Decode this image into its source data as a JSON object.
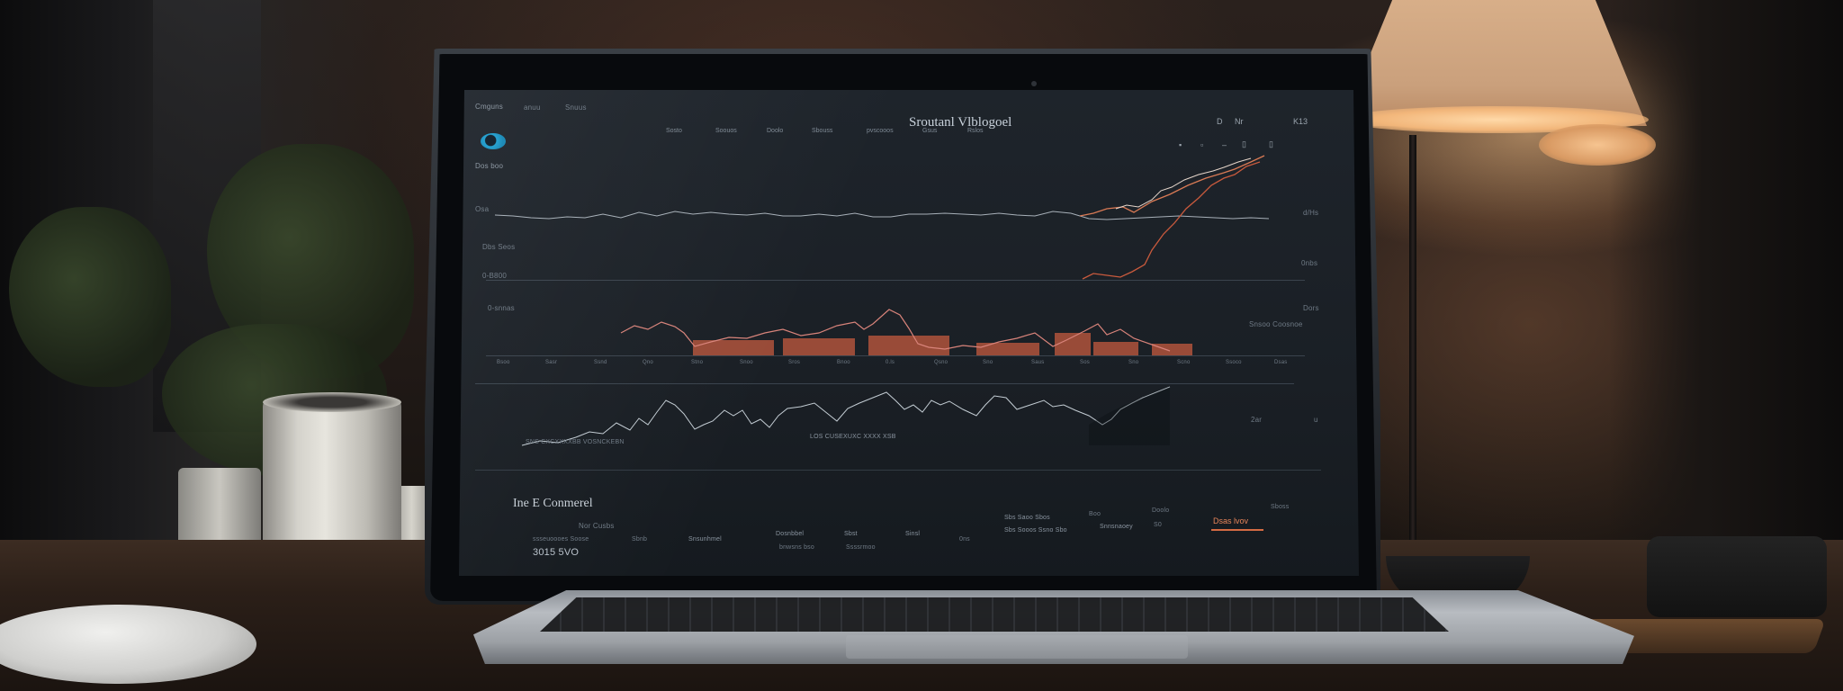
{
  "screen": {
    "title": "Sroutanl Vlblogoel",
    "top_left": "Cmguns",
    "top_tabs": [
      "anuu",
      "Snuus"
    ],
    "nav_items": [
      "Sosto",
      "Soouos",
      "Doolo",
      "Sbouss",
      "pvscooos",
      "Gsus",
      "Rslos"
    ],
    "top_right": [
      "D",
      "Nr",
      "K13"
    ],
    "panel1_label": "Dos boo",
    "left_labels": [
      "Osa",
      "Dbs Seos",
      "0-B800",
      "0-snnas"
    ],
    "right_labels": [
      "d/Hs",
      "0nbs",
      "Dors"
    ],
    "x_ticks": [
      "Bsoo",
      "Sasr",
      "Ssnd",
      "Qno",
      "Stno",
      "Snoo",
      "Sros",
      "Bnoo",
      "0.ls",
      "Qsno",
      "Sno",
      "Saus",
      "Sos",
      "Sno",
      "Scno",
      "Ssoco",
      "Dsas"
    ],
    "mid_right": "Snsoo Coosnoe",
    "chart3_caption_left": "SNS CXCXXXXBB VOSNCKEBN",
    "chart3_caption_mid": "LOS CUSEXUXC XXXX XSB",
    "chart3_right_labels": [
      "2ar",
      "u"
    ],
    "bottom_title": "Ine E Conmerel",
    "bottom_subtitle": "Nor Cusbs",
    "bottom_items": [
      "ssseuoooes Soose",
      "3015 5VO",
      "Sbnb",
      "Snsunhmel",
      "Dosnbbel",
      "bnwsns bso",
      "Sbst",
      "Ssssrmoo",
      "Sinsl",
      "0ns",
      "Sbs Saoo Sbos",
      "Sbs Sooos Ssno Sbo",
      "Boo",
      "Snnsnaoey",
      "Doolo",
      "S0",
      "Sboss",
      "Dsas lvov"
    ],
    "accent_color": "#e7855a"
  }
}
